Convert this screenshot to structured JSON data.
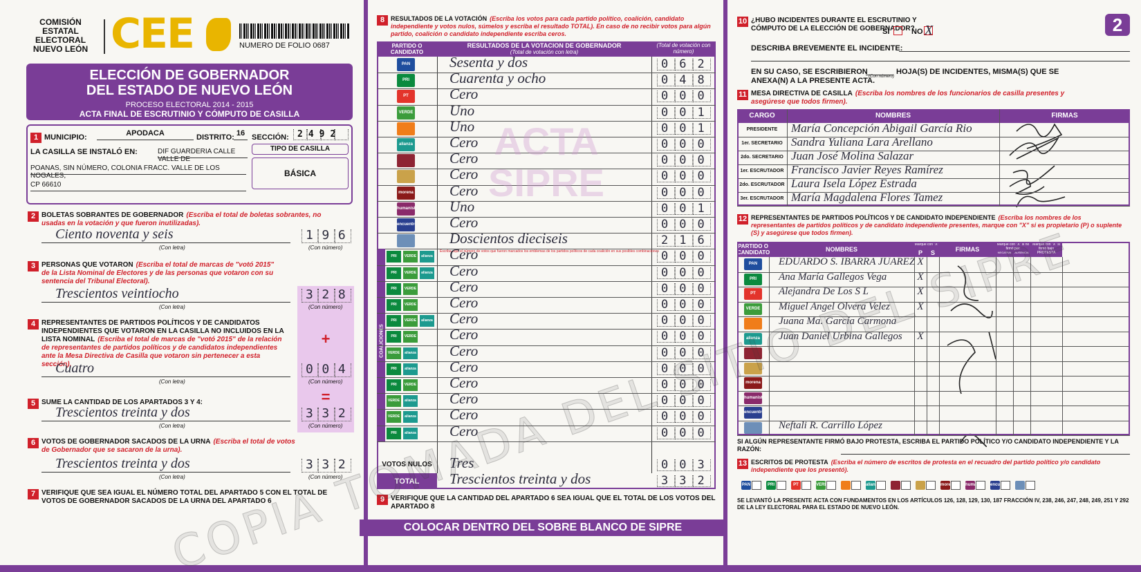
{
  "header": {
    "org": [
      "COMISIÓN",
      "ESTATAL",
      "ELECTORAL",
      "NUEVO LEÓN"
    ],
    "logo": "CEE",
    "folio": "NUMERO DE FOLIO 0687",
    "title": [
      "ELECCIÓN DE GOBERNADOR",
      "DEL ESTADO DE NUEVO LEÓN"
    ],
    "process": "PROCESO ELECTORAL 2014 - 2015",
    "acta": "ACTA FINAL DE ESCRUTINIO Y CÓMPUTO DE CASILLA",
    "page": "2"
  },
  "section1": {
    "num": "1",
    "municipio_label": "MUNICIPIO:",
    "municipio": "APODACA",
    "distrito_label": "DISTRITO:",
    "distrito": "16",
    "seccion_label": "SECCIÓN:",
    "seccion": "2492",
    "casilla_label": "LA CASILLA SE INSTALÓ EN:",
    "address": [
      "DIF GUARDERIA CALLE VALLE DE",
      "POANAS, SIN NÚMERO, COLONIA FRACC. VALLE DE LOS NOGALES,",
      "CP 66610"
    ],
    "tipo_label": "TIPO DE CASILLA",
    "tipo": "BÁSICA"
  },
  "captions": {
    "letter": "(Con letra)",
    "number": "(Con número)"
  },
  "sections": [
    {
      "num": "2",
      "title": "BOLETAS SOBRANTES DE GOBERNADOR",
      "note": "(Escriba el total de boletas sobrantes, no usadas en la votación y que fueron inutilizadas).",
      "letter": "Ciento noventa y seis",
      "number": "196"
    },
    {
      "num": "3",
      "title": "PERSONAS QUE VOTARON",
      "note": "(Escriba el total de marcas de \"votó 2015\" de la Lista Nominal de Electores y de las personas que votaron con su sentencia del Tribunal Electoral).",
      "letter": "Trescientos veintiocho",
      "number": "328"
    },
    {
      "num": "4",
      "title": "REPRESENTANTES DE PARTIDOS POLÍTICOS Y DE CANDIDATOS INDEPENDIENTES QUE VOTARON EN LA CASILLA NO INCLUIDOS EN LA LISTA NOMINAL",
      "note": "(Escriba el total de marcas de \"votó 2015\" de la relación de representantes de partidos políticos y de candidatos independientes ante la Mesa Directiva de Casilla que votaron sin pertenecer a esta sección).",
      "letter": "Cuatro",
      "number": "004",
      "sign": "+"
    },
    {
      "num": "5",
      "title": "SUME LA CANTIDAD DE LOS APARTADOS 3 Y 4:",
      "letter": "Trescientos treinta y dos",
      "number": "332",
      "sign": "="
    },
    {
      "num": "6",
      "title": "VOTOS DE GOBERNADOR SACADOS DE LA URNA",
      "note": "(Escriba el total de votos de Gobernador que se sacaron de la urna).",
      "letter": "Trescientos treinta y dos",
      "number": "332"
    },
    {
      "num": "7",
      "title": "VERIFIQUE QUE SEA IGUAL EL NÚMERO TOTAL DEL APARTADO 5 CON EL TOTAL DE VOTOS DE GOBERNADOR SACADOS DE LA URNA DEL APARTADO 6"
    }
  ],
  "results": {
    "num": "8",
    "title": "RESULTADOS DE LA VOTACIÓN",
    "note": "(Escriba los votos para cada partido político, coalición, candidato independiente y votos nulos, súmelos y escriba el resultado TOTAL). En caso de no recibir votos para algún partido, coalición o candidato independiente escriba ceros.",
    "col_party": "PARTIDO O CANDIDATO",
    "col_letter": "RESULTADOS DE LA VOTACIÓN DE GOBERNADOR",
    "col_letter_sub": "(Total de votación con letra)",
    "col_number": "(Total de votación con número)",
    "rows": [
      {
        "party": "PAN",
        "color": "#1f4e9e",
        "letter": "Sesenta y dos",
        "number": "062"
      },
      {
        "party": "PRI",
        "color": "#0b8a3e",
        "letter": "Cuarenta y ocho",
        "number": "048"
      },
      {
        "party": "PT",
        "color": "#e3342b",
        "letter": "Cero",
        "number": "000"
      },
      {
        "party": "VERDE",
        "color": "#3b9c3b",
        "letter": "Uno",
        "number": "001"
      },
      {
        "party": null,
        "color": "#f07d1a",
        "letter": "Uno",
        "number": "001"
      },
      {
        "party": "alianza",
        "color": "#1d9a8f",
        "letter": "Cero",
        "number": "000"
      },
      {
        "party": null,
        "color": "#8e2433",
        "letter": "Cero",
        "number": "000"
      },
      {
        "party": null,
        "color": "#caa24a",
        "letter": "Cero",
        "number": "000"
      },
      {
        "party": "morena",
        "color": "#8b1a1a",
        "letter": "Cero",
        "number": "000"
      },
      {
        "party": "humanista",
        "color": "#8a2a6a",
        "letter": "Uno",
        "number": "001"
      },
      {
        "party": "encuentro social",
        "color": "#2a3f8f",
        "letter": "Cero",
        "number": "000"
      },
      {
        "party": null,
        "color": "#6d8fb8",
        "letter": "Doscientos dieciseis",
        "number": "216"
      }
    ],
    "coalition_label": "COALICIONES",
    "coalition_note": "Escriba aquí el número de votos que fueron marcados los emblemas de los partidos políticos de cada coalición en sus posibles combinaciones",
    "coalitions": [
      {
        "parties": [
          "PRI",
          "VERDE",
          "alianza"
        ],
        "letter": "Cero",
        "number": "000"
      },
      {
        "parties": [
          "PRI",
          "VERDE",
          "alianza"
        ],
        "letter": "Cero",
        "number": "000"
      },
      {
        "parties": [
          "PRI",
          "VERDE"
        ],
        "letter": "Cero",
        "number": "000"
      },
      {
        "parties": [
          "PRI",
          "VERDE"
        ],
        "letter": "Cero",
        "number": "000"
      },
      {
        "parties": [
          "PRI",
          "VERDE",
          "alianza"
        ],
        "letter": "Cero",
        "number": "000"
      },
      {
        "parties": [
          "PRI",
          "VERDE"
        ],
        "letter": "Cero",
        "number": "000"
      },
      {
        "parties": [
          "VERDE",
          "alianza"
        ],
        "letter": "Cero",
        "number": "000"
      },
      {
        "parties": [
          "PRI",
          "alianza"
        ],
        "letter": "Cero",
        "number": "000"
      },
      {
        "parties": [
          "PRI",
          "VERDE"
        ],
        "letter": "Cero",
        "number": "000"
      },
      {
        "parties": [
          "VERDE",
          "alianza"
        ],
        "letter": "Cero",
        "number": "000"
      },
      {
        "parties": [
          "VERDE",
          "alianza"
        ],
        "letter": "Cero",
        "number": "000"
      },
      {
        "parties": [
          "PRI",
          "alianza"
        ],
        "letter": "Cero",
        "number": "000"
      }
    ],
    "nulos": {
      "label": "VOTOS NULOS",
      "letter": "Tres",
      "number": "003"
    },
    "total": {
      "label": "TOTAL",
      "letter": "Trescientos treinta y dos",
      "number": "332"
    }
  },
  "section9": {
    "num": "9",
    "text": "VERIFIQUE QUE LA CANTIDAD DEL APARTADO 6 SEA IGUAL QUE EL TOTAL DE LOS VOTOS DEL APARTADO 8"
  },
  "banner": "COLOCAR DENTRO DEL SOBRE BLANCO DE SIPRE",
  "section10": {
    "num": "10",
    "question": "¿HUBO INCIDENTES DURANTE EL ESCRUTINIO Y CÓMPUTO DE LA ELECCIÓN DE GOBERNADOR?",
    "si": "SÍ",
    "no": "NO",
    "no_mark": "X",
    "describe": "DESCRIBA BREVEMENTE EL INCIDENTE:",
    "anexo_a": "EN SU CASO, SE ESCRIBIERON",
    "anexo_caption": "(Con número)",
    "anexo_b": "HOJA(S) DE INCIDENTES, MISMA(S) QUE SE",
    "anexo_c": "ANEXA(N) A LA PRESENTE ACTA."
  },
  "section11": {
    "num": "11",
    "title": "MESA DIRECTIVA DE CASILLA",
    "note": "(Escriba los nombres de los funcionarios de casilla presentes y asegúrese que todos firmen).",
    "columns": [
      "CARGO",
      "NOMBRES",
      "FIRMAS"
    ],
    "rows": [
      {
        "cargo": "PRESIDENTE",
        "name": "María Concepción Abigail García Rio"
      },
      {
        "cargo": "1er. SECRETARIO",
        "name": "Sandra Yuliana Lara Arellano"
      },
      {
        "cargo": "2do. SECRETARIO",
        "name": "Juan José Molina Salazar"
      },
      {
        "cargo": "1er. ESCRUTADOR",
        "name": "Francisco Javier Reyes Ramírez"
      },
      {
        "cargo": "2do. ESCRUTADOR",
        "name": "Laura Isela López Estrada"
      },
      {
        "cargo": "3er. ESCRUTADOR",
        "name": "María Magdalena Flores Tamez"
      }
    ]
  },
  "section12": {
    "num": "12",
    "title": "REPRESENTANTES DE PARTIDOS POLÍTICOS Y DE CANDIDATO INDEPENDIENTE",
    "note": "(Escriba los nombres de los representantes de partidos políticos y de candidato independiente presentes, marque con \"X\" si es propietario (P) o suplente (S) y asegúrese que todos firmen).",
    "head": {
      "party": "PARTIDO O CANDIDATO",
      "names": "NOMBRES",
      "mark_ps": "Marque con \"X\"",
      "p": "P",
      "s": "S",
      "signatures": "FIRMAS",
      "mark_no": "Marque con \"X\" si no firmó por:",
      "negativa": "NEGATIVA",
      "ausencia": "AUSENCIA",
      "mark_protest": "Marque con \"X\" si firmó bajo",
      "protesta": "PROTESTA"
    },
    "rows": [
      {
        "name": "EDUARDO S. IBARRA JUAREZ",
        "p": "X"
      },
      {
        "name": "Ana María Gallegos Vega",
        "p": "X"
      },
      {
        "name": "Alejandra De Los S L",
        "p": "X"
      },
      {
        "name": "Miguel Angel Olvera Velez",
        "p": "X"
      },
      {
        "name": "Juana Ma. García Carmona",
        "p": null
      },
      {
        "name": "Juan Daniel Urbina Gallegos",
        "p": "X"
      },
      {
        "name": null,
        "p": null
      },
      {
        "name": null,
        "p": null
      },
      {
        "name": null,
        "p": null
      },
      {
        "name": null,
        "p": null
      },
      {
        "name": null,
        "p": null
      },
      {
        "name": "Neftali R. Carrillo López",
        "p": null
      }
    ],
    "protesta": "SI ALGÚN REPRESENTANTE FIRMÓ BAJO PROTESTA, ESCRIBA EL PARTIDO POLÍTICO Y/O CANDIDATO INDEPENDIENTE Y LA RAZÓN:"
  },
  "section13": {
    "num": "13",
    "title": "ESCRITOS DE PROTESTA",
    "note": "(Escriba el número de escritos de protesta en el recuadro del partido político y/o candidato independiente que los presentó)."
  },
  "legal": "SE LEVANTÓ LA PRESENTE ACTA CON FUNDAMENTOS EN LOS ARTÍCULOS 126, 128, 129, 130, 187 FRACCIÓN IV, 238, 246, 247, 248, 249, 251 Y 292 DE LA LEY ELECTORAL PARA EL ESTADO DE NUEVO LEÓN.",
  "watermarks": {
    "acta": [
      "ACTA",
      "SIPRE"
    ],
    "copia": "COPIA TOMADA DEL SITIO DEL SIPRE"
  }
}
